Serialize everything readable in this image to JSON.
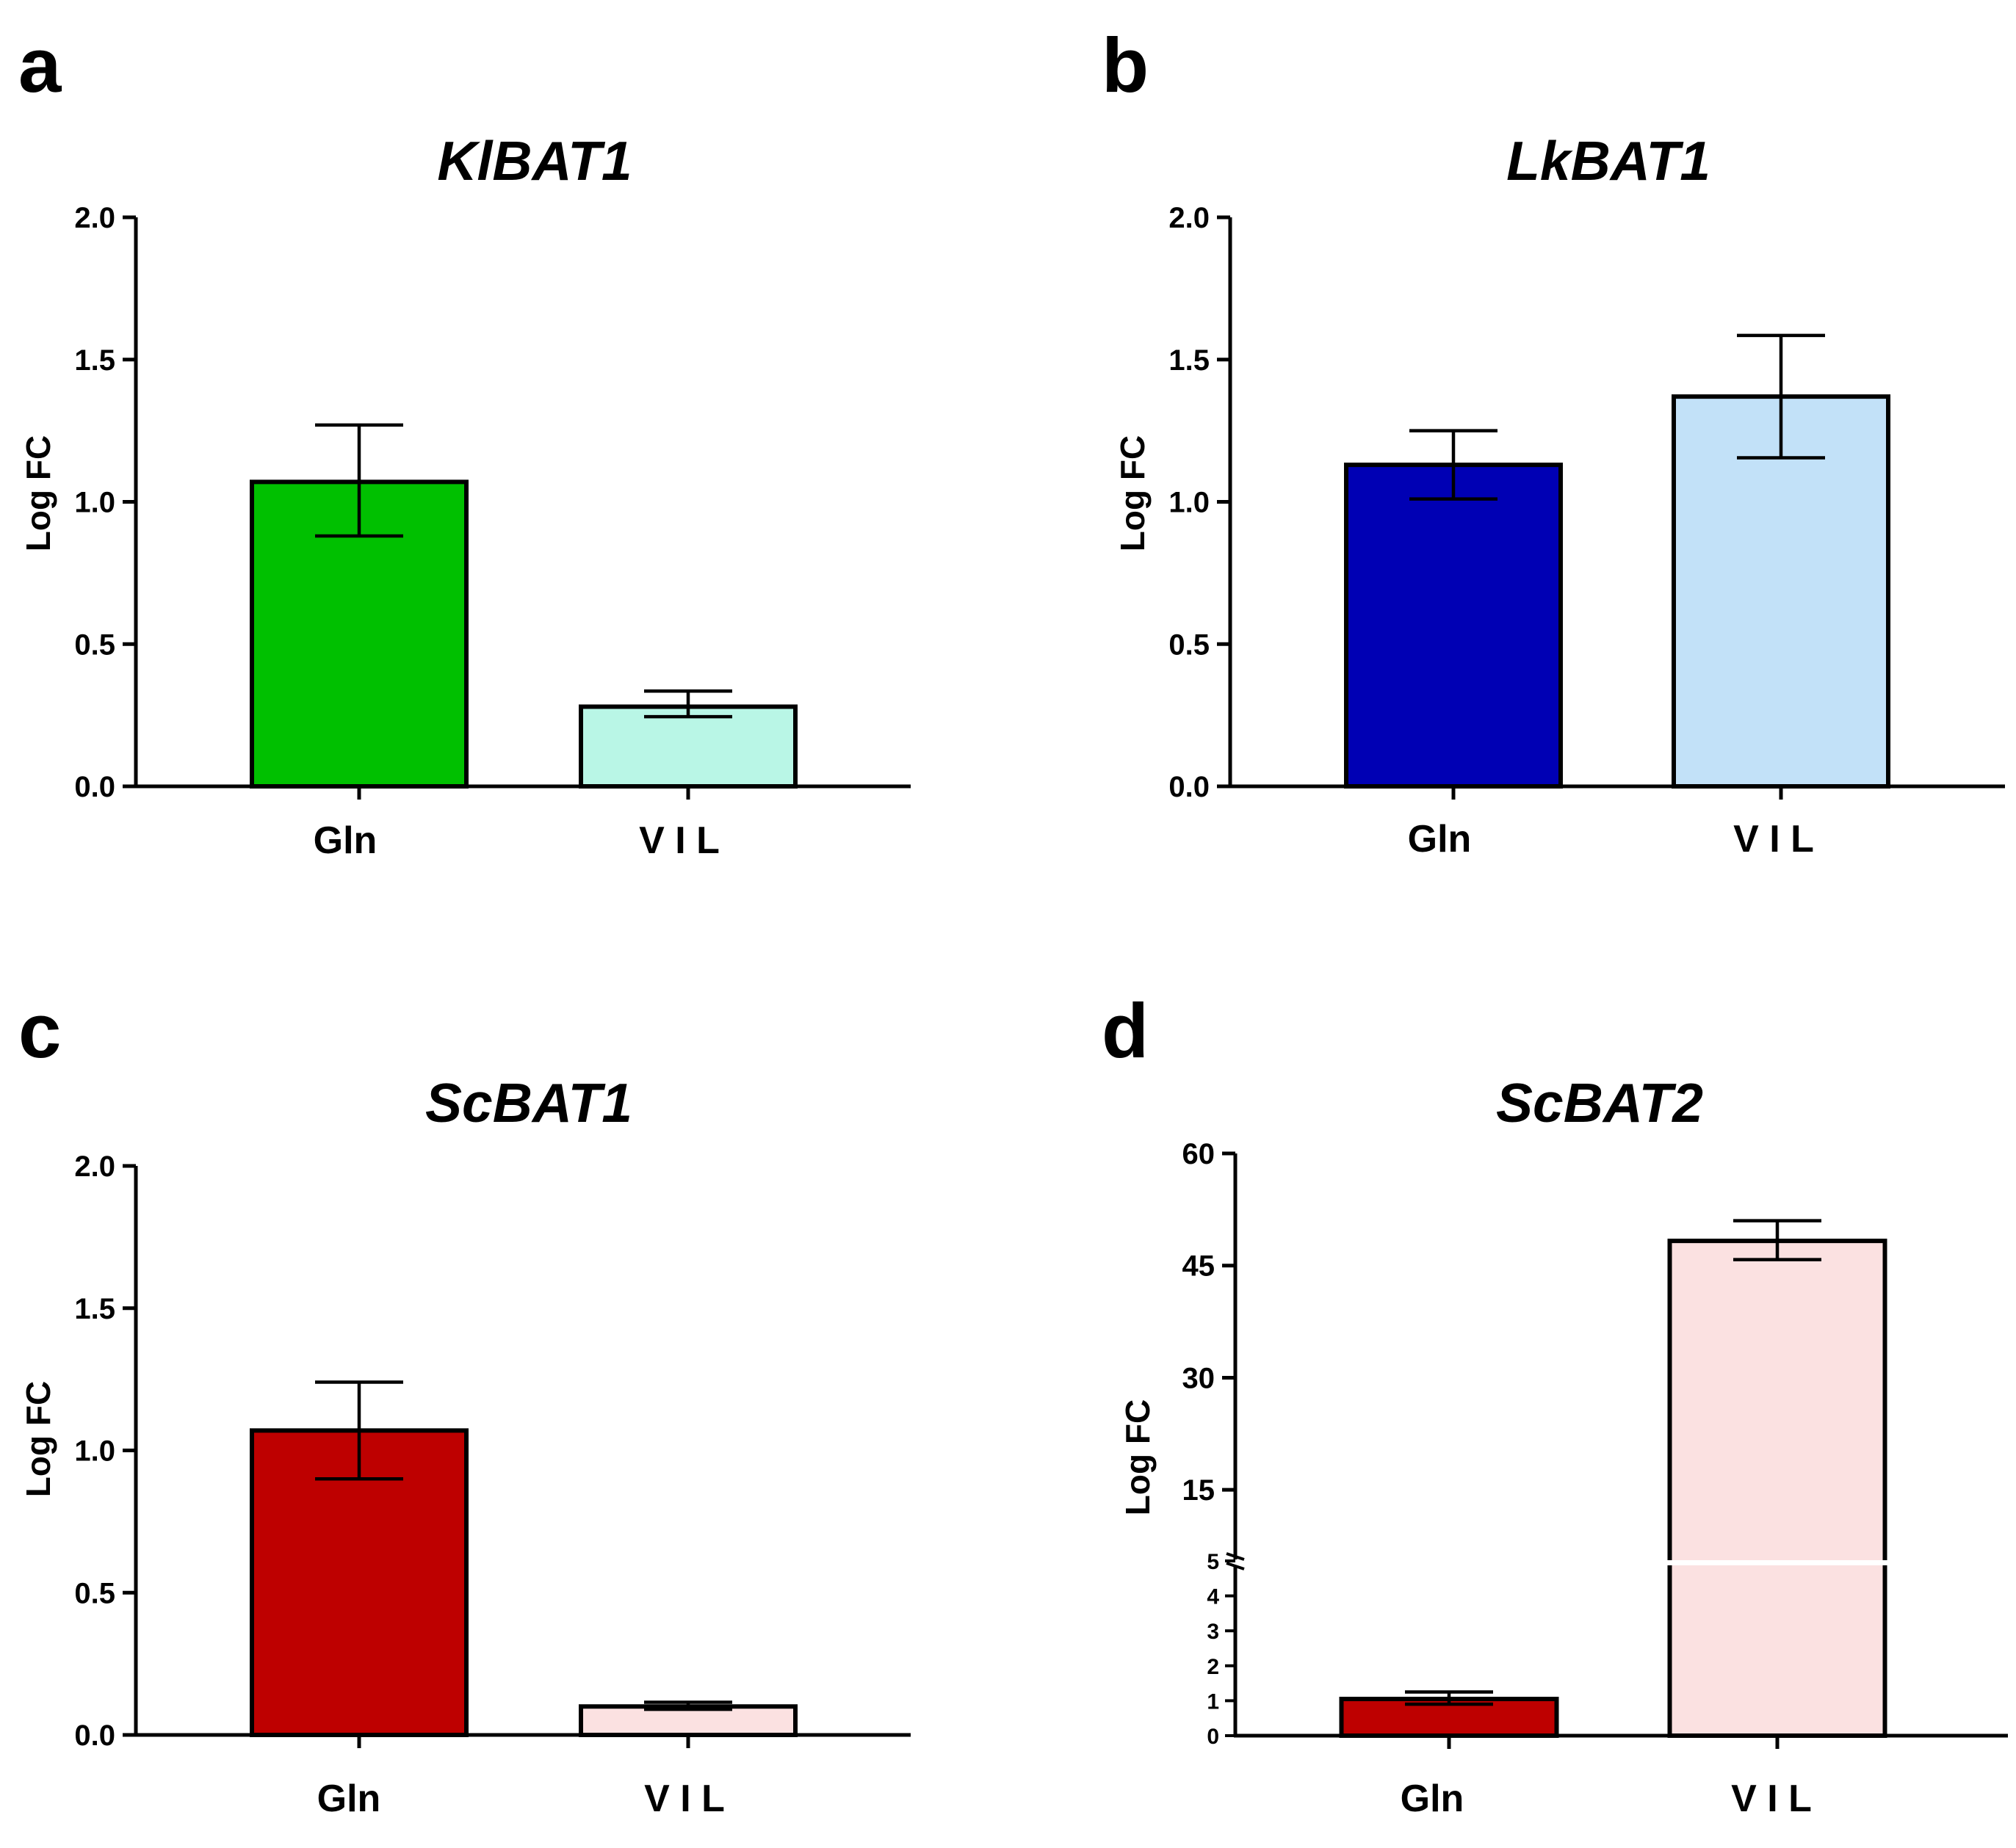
{
  "chart_data": [
    {
      "panel": "a",
      "type": "bar",
      "title": "KlBAT1",
      "xlabel": "",
      "ylabel": "Log FC",
      "ylim": [
        0,
        2.0
      ],
      "yticks": [
        "0.0",
        "0.5",
        "1.0",
        "1.5",
        "2.0"
      ],
      "categories": [
        "Gln",
        "V I L"
      ],
      "values": [
        1.07,
        0.28
      ],
      "errors": [
        {
          "low": 0.88,
          "high": 1.27
        },
        {
          "low": 0.245,
          "high": 0.335
        }
      ],
      "colors": [
        "#00C000",
        "#B9F6E6"
      ]
    },
    {
      "panel": "b",
      "type": "bar",
      "title": "LkBAT1",
      "xlabel": "",
      "ylabel": "Log FC",
      "ylim": [
        0,
        2.0
      ],
      "yticks": [
        "0.0",
        "0.5",
        "1.0",
        "1.5",
        "2.0"
      ],
      "categories": [
        "Gln",
        "V I L"
      ],
      "values": [
        1.13,
        1.37
      ],
      "errors": [
        {
          "low": 1.01,
          "high": 1.25
        },
        {
          "low": 1.155,
          "high": 1.585
        }
      ],
      "colors": [
        "#0000B4",
        "#C2E1F8"
      ]
    },
    {
      "panel": "c",
      "type": "bar",
      "title": "ScBAT1",
      "xlabel": "",
      "ylabel": "Log FC",
      "ylim": [
        0,
        2.0
      ],
      "yticks": [
        "0.0",
        "0.5",
        "1.0",
        "1.5",
        "2.0"
      ],
      "categories": [
        "Gln",
        "V I L"
      ],
      "values": [
        1.07,
        0.1
      ],
      "errors": [
        {
          "low": 0.9,
          "high": 1.24
        },
        {
          "low": 0.09,
          "high": 0.115
        }
      ],
      "colors": [
        "#BE0000",
        "#FBE1E1"
      ]
    },
    {
      "panel": "d",
      "type": "bar",
      "title": "ScBAT2",
      "xlabel": "",
      "ylabel": "Log FC",
      "axis_break": {
        "lower_range": [
          0,
          5
        ],
        "upper_range": [
          5,
          60
        ]
      },
      "yticks_lower": [
        "0",
        "1",
        "2",
        "3",
        "4",
        "5"
      ],
      "yticks_upper": [
        "15",
        "30",
        "45",
        "60"
      ],
      "categories": [
        "Gln",
        "V I L"
      ],
      "values": [
        1.05,
        48.3
      ],
      "errors": [
        {
          "low": 0.9,
          "high": 1.25
        },
        {
          "low": 45.8,
          "high": 51.0
        }
      ],
      "colors": [
        "#BE0000",
        "#FBE1E1"
      ]
    }
  ]
}
